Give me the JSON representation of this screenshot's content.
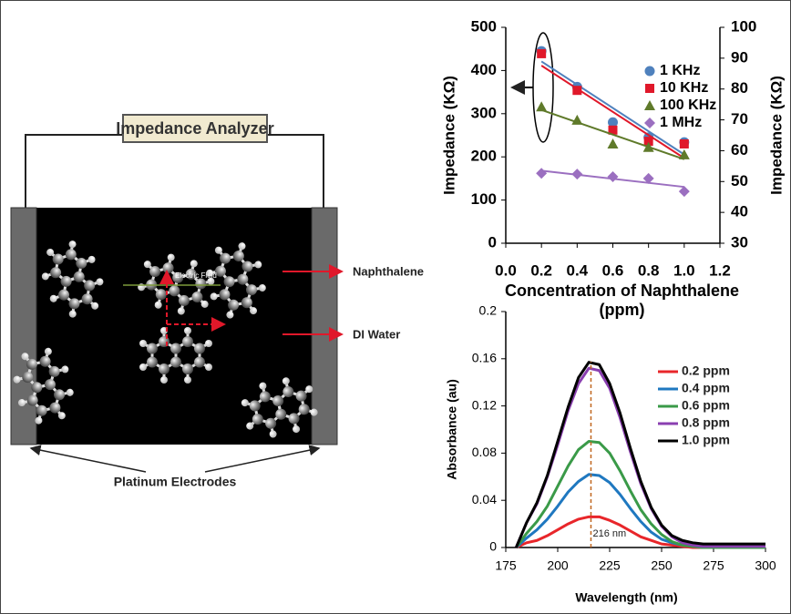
{
  "diagram": {
    "instrument": "Impedance Analyzer",
    "field_label": "Electric Field",
    "molecule_label": "Naphthalene",
    "medium_label": "DI Water",
    "electrode_label": "Platinum Electrodes"
  },
  "chart_data": [
    {
      "type": "scatter",
      "y_label": "Impedance (KΩ)",
      "y2_label": "Impedance (KΩ)",
      "x_label": [
        "Concentration of Naphthalene",
        "(ppm)"
      ],
      "xlim": [
        0,
        1.2
      ],
      "xticks": [
        {
          "value": 0,
          "label": "0.0"
        },
        0.2,
        0.4,
        0.6,
        0.8,
        {
          "value": 1,
          "label": "1.0"
        },
        1.2
      ],
      "ylim": [
        0,
        500
      ],
      "yticks": [
        0,
        100,
        200,
        300,
        400,
        500
      ],
      "y2lim": [
        30,
        100
      ],
      "y2ticks": [
        30,
        40,
        50,
        60,
        70,
        80,
        90,
        100
      ],
      "trendlines": true,
      "x": [
        0.2,
        0.4,
        0.6,
        0.8,
        1.0
      ],
      "series": [
        {
          "name": "1 KHz",
          "color": "#4f81bd",
          "marker": "circle",
          "values": [
            445,
            362,
            280,
            245,
            234
          ]
        },
        {
          "name": "10 KHz",
          "color": "#e0182a",
          "marker": "square",
          "values": [
            439,
            354,
            262,
            236,
            230
          ]
        },
        {
          "name": "100 KHz",
          "color": "#5f7a2a",
          "marker": "triangle",
          "values": [
            316,
            285,
            230,
            222,
            205
          ]
        },
        {
          "name": "1 MHz",
          "color": "#9b6fc0",
          "marker": "diamond",
          "values": [
            162,
            160,
            154,
            150,
            120
          ]
        }
      ]
    },
    {
      "type": "line",
      "y_label": "Absorbance (au)",
      "x_label": "Wavelength (nm)",
      "xlim": [
        175,
        300
      ],
      "xticks": [
        175,
        200,
        225,
        250,
        275,
        300
      ],
      "ylim": [
        0,
        0.2
      ],
      "yticks": [
        0,
        0.04,
        0.08,
        0.12,
        0.16,
        0.2
      ],
      "annotation": {
        "x": 216,
        "label": "216 nm",
        "color": "#c0661e"
      },
      "x": [
        180,
        185,
        190,
        195,
        200,
        205,
        210,
        215,
        220,
        225,
        230,
        235,
        240,
        245,
        250,
        255,
        260,
        265,
        270,
        275,
        280,
        285,
        290,
        295,
        300
      ],
      "series": [
        {
          "name": "0.2 ppm",
          "color": "#e8262a",
          "values": [
            0,
            0.004,
            0.006,
            0.01,
            0.015,
            0.02,
            0.024,
            0.026,
            0.026,
            0.023,
            0.019,
            0.014,
            0.009,
            0.006,
            0.003,
            0.002,
            0.001,
            0,
            0,
            0,
            0,
            0,
            0,
            0,
            0
          ]
        },
        {
          "name": "0.4 ppm",
          "color": "#1f78c0",
          "values": [
            0,
            0.008,
            0.015,
            0.024,
            0.035,
            0.047,
            0.056,
            0.062,
            0.061,
            0.055,
            0.045,
            0.033,
            0.022,
            0.013,
            0.007,
            0.004,
            0.002,
            0.001,
            0,
            0,
            0,
            0,
            0,
            0,
            0
          ]
        },
        {
          "name": "0.6 ppm",
          "color": "#3a9a48",
          "values": [
            0,
            0.012,
            0.022,
            0.035,
            0.052,
            0.069,
            0.083,
            0.09,
            0.089,
            0.08,
            0.065,
            0.048,
            0.032,
            0.02,
            0.011,
            0.005,
            0.002,
            0.001,
            0,
            0,
            0,
            0,
            0,
            0,
            0
          ]
        },
        {
          "name": "0.8 ppm",
          "color": "#8a3fb0",
          "values": [
            0,
            0.021,
            0.037,
            0.06,
            0.087,
            0.116,
            0.139,
            0.152,
            0.15,
            0.135,
            0.11,
            0.081,
            0.054,
            0.033,
            0.018,
            0.009,
            0.004,
            0.002,
            0.001,
            0.001,
            0.001,
            0.001,
            0.001,
            0.001,
            0.001
          ]
        },
        {
          "name": "1.0 ppm",
          "color": "#000000",
          "values": [
            0,
            0.021,
            0.038,
            0.061,
            0.09,
            0.119,
            0.144,
            0.157,
            0.155,
            0.139,
            0.114,
            0.084,
            0.056,
            0.034,
            0.019,
            0.01,
            0.006,
            0.004,
            0.003,
            0.003,
            0.003,
            0.003,
            0.003,
            0.003,
            0.003
          ]
        }
      ]
    }
  ]
}
